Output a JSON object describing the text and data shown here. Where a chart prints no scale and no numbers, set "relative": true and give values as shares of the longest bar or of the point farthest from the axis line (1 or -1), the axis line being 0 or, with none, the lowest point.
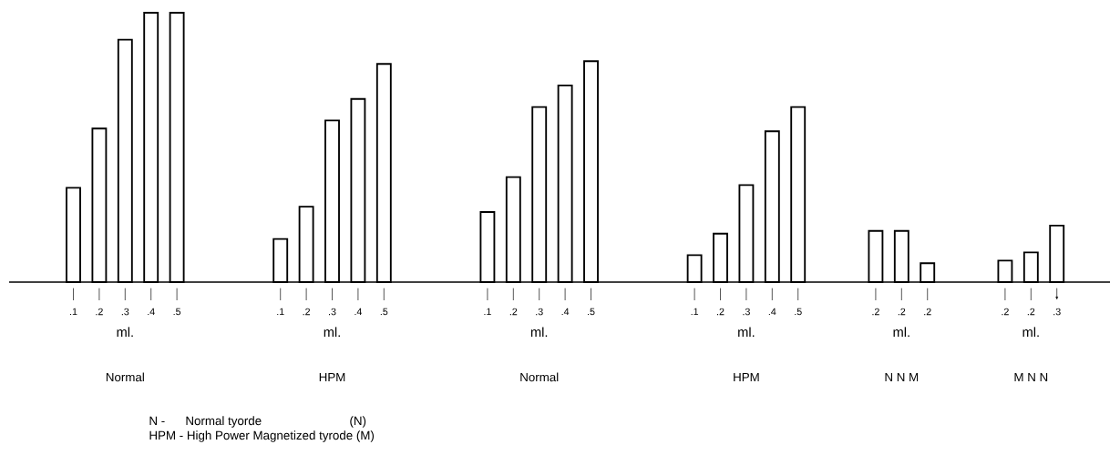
{
  "chart_data": {
    "type": "bar",
    "relative": true,
    "color": "#000000",
    "categories": [
      ".1",
      ".2",
      ".3",
      ".4",
      ".5",
      null,
      null,
      null,
      ".1",
      ".2",
      ".3",
      ".4",
      ".5",
      null,
      null,
      null,
      ".1",
      ".2",
      ".3",
      ".4",
      ".5",
      null,
      null,
      null,
      ".1",
      ".2",
      ".3",
      ".4",
      ".5",
      null,
      null,
      ".2",
      ".2",
      ".2",
      null,
      null,
      ".2",
      ".2",
      ".3"
    ],
    "values": [
      0.35,
      0.57,
      0.9,
      1,
      1,
      null,
      null,
      null,
      0.16,
      0.28,
      0.6,
      0.68,
      0.81,
      null,
      null,
      null,
      0.26,
      0.39,
      0.65,
      0.73,
      0.82,
      null,
      null,
      null,
      0.1,
      0.18,
      0.36,
      0.56,
      0.65,
      null,
      null,
      0.19,
      0.19,
      0.07,
      null,
      null,
      0.08,
      0.11,
      0.21
    ],
    "annotations": [
      "ml.",
      "ml.",
      "ml.",
      "ml.",
      "ml.",
      "ml.",
      "Normal",
      "HPM",
      "Normal",
      "HPM",
      "N  N  M",
      "M  N  N",
      "N -      Normal tyorde                          (N)",
      "HPM - High Power Magnetized tyrode (M)"
    ]
  }
}
